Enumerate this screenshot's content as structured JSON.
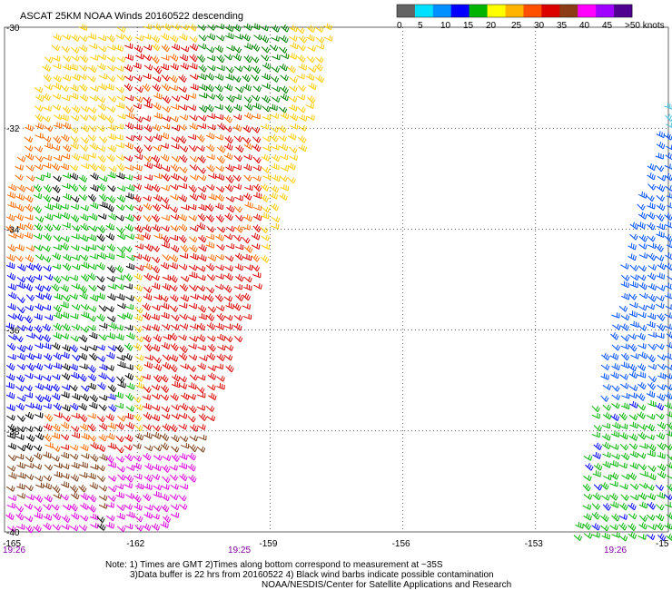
{
  "title": "ASCAT 25KM NOAA Winds 20160522 descending",
  "legend": {
    "labels": [
      "0",
      "5",
      "10",
      "15",
      "20",
      "25",
      "30",
      "35",
      "40",
      "45",
      ">50 knots"
    ],
    "colors": [
      "#646464",
      "#00e0ff",
      "#0090ff",
      "#0000ff",
      "#00b400",
      "#ffff00",
      "#ffb400",
      "#ff5000",
      "#dc0000",
      "#8c3c14",
      "#ff00ff",
      "#a000ff",
      "#500090"
    ]
  },
  "lat_labels": [
    "-30",
    "-32",
    "-34",
    "-36",
    "-38",
    "-40"
  ],
  "lon_labels": [
    "-165",
    "-162",
    "-159",
    "-156",
    "-153",
    "-15"
  ],
  "time_labels": [
    "19:26",
    "19:25",
    "19:26"
  ],
  "notes": [
    "Note: 1) Times are GMT 2)Times along bottom correspond to measurement at ~35S",
    "3)Data buffer is 22 hrs from 20160522 4) Black wind barbs indicate possible contamination",
    "NOAA/NESDIS/Center for Satellite Applications and Research"
  ],
  "map_data": {
    "region": {
      "lat_range": [
        -40,
        -30
      ],
      "lon_range": [
        -165,
        -150
      ]
    },
    "grid": "dotted every 2 degrees latitude and 3 degrees longitude",
    "swaths": [
      {
        "name": "western swath",
        "time": "19:26 / 19:25",
        "wind_pattern": [
          {
            "area": "northeast",
            "speed_class": "20-25 kt",
            "color": "#ffff00"
          },
          {
            "area": "north central band",
            "speed_class": "30-40 kt",
            "color": "#dc0000"
          },
          {
            "area": "western edge",
            "speed_class": "25-35 kt",
            "color": "#ff5000"
          },
          {
            "area": "west central",
            "speed_class": "15-20 kt",
            "color": "#00b400"
          },
          {
            "area": "far west",
            "speed_class": "10-15 kt",
            "color": "#0000ff"
          },
          {
            "area": "southwest",
            "speed_class": "45-50 kt",
            "color": "#ff00ff"
          },
          {
            "area": "south",
            "speed_class": "35-40 kt",
            "color": "#8c3c14"
          }
        ]
      },
      {
        "name": "eastern swath",
        "time": "19:26",
        "wind_pattern": [
          {
            "area": "north",
            "speed_class": "5-15 kt",
            "color": "#0000ff"
          },
          {
            "area": "south",
            "speed_class": "15-20 kt",
            "color": "#00b400"
          }
        ]
      }
    ]
  }
}
